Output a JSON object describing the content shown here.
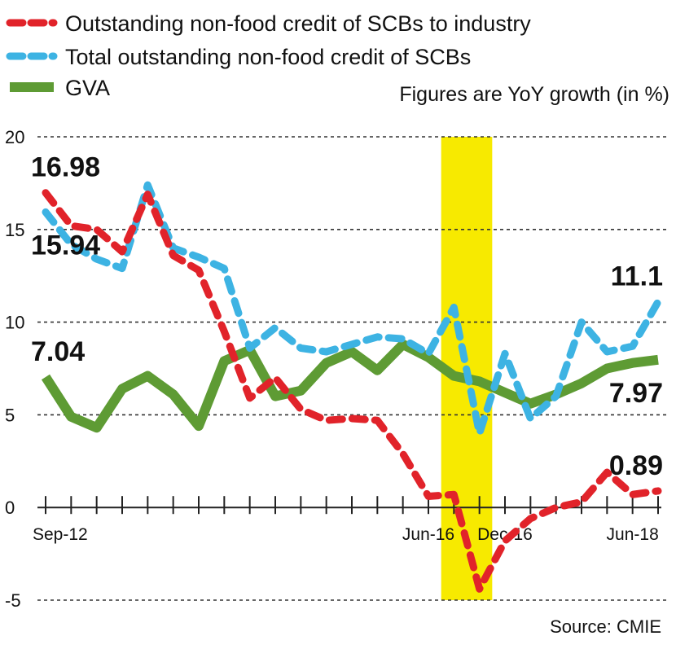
{
  "chart_data": {
    "type": "line",
    "note": "Figures are YoY growth (in %)",
    "source": "Source: CMIE",
    "ylim": [
      -5,
      20
    ],
    "yticks": [
      20,
      15,
      10,
      5,
      0,
      -5
    ],
    "x_count": 25,
    "x_tick_labels": [
      {
        "index": 0,
        "label": "Sep-12"
      },
      {
        "index": 15,
        "label": "Jun-16"
      },
      {
        "index": 18,
        "label": "Dec-16"
      },
      {
        "index": 23,
        "label": "Jun-18"
      }
    ],
    "highlight": {
      "from": 15.5,
      "to": 17.5,
      "color": "#f7ea00"
    },
    "series": [
      {
        "name": "Outstanding non-food credit of SCBs to industry",
        "color": "#e1232a",
        "style": "dashed",
        "values": [
          16.98,
          15.2,
          15.0,
          13.8,
          16.9,
          13.6,
          12.8,
          9.5,
          5.9,
          7.0,
          5.3,
          4.7,
          4.8,
          4.7,
          2.9,
          0.6,
          0.7,
          -4.4,
          -1.8,
          -0.6,
          0.0,
          0.3,
          1.9,
          0.7,
          0.89
        ]
      },
      {
        "name": "Total outstanding non-food credit of SCBs",
        "color": "#3db3e3",
        "style": "dashed",
        "values": [
          15.94,
          14.2,
          13.4,
          12.9,
          17.4,
          14.0,
          13.5,
          12.9,
          8.6,
          9.7,
          8.6,
          8.4,
          8.8,
          9.2,
          9.1,
          8.3,
          10.8,
          4.0,
          8.3,
          4.8,
          6.0,
          10.0,
          8.4,
          8.7,
          11.1
        ]
      },
      {
        "name": "GVA",
        "color": "#5e9b34",
        "style": "solid",
        "values": [
          7.04,
          4.9,
          4.3,
          6.4,
          7.1,
          6.1,
          4.4,
          7.9,
          8.5,
          6.0,
          6.3,
          7.8,
          8.4,
          7.4,
          8.8,
          8.1,
          7.1,
          6.8,
          6.2,
          5.6,
          6.1,
          6.7,
          7.5,
          7.8,
          7.97
        ]
      }
    ],
    "annotations": [
      {
        "text": "16.98",
        "series": 0,
        "index": 0,
        "pos": "above"
      },
      {
        "text": "15.94",
        "series": 1,
        "index": 0,
        "pos": "below"
      },
      {
        "text": "7.04",
        "series": 2,
        "index": 0,
        "pos": "above"
      },
      {
        "text": "11.1",
        "series": 1,
        "index": 24,
        "pos": "above"
      },
      {
        "text": "7.97",
        "series": 2,
        "index": 24,
        "pos": "below"
      },
      {
        "text": "0.89",
        "series": 0,
        "index": 24,
        "pos": "above"
      }
    ]
  }
}
